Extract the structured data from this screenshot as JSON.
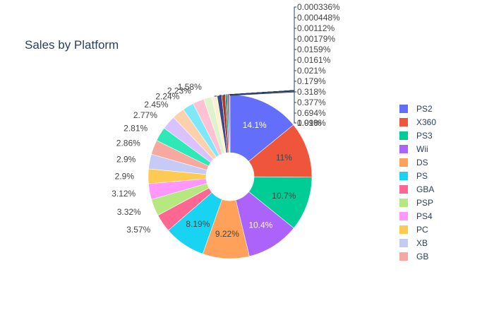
{
  "chart_data": {
    "type": "pie",
    "title": "Sales by Platform",
    "hole": true,
    "legend_position": "right",
    "slices": [
      {
        "label": "PS2",
        "value": 14.1,
        "text": "14.1%",
        "color": "#636efa"
      },
      {
        "label": "X360",
        "value": 11.0,
        "text": "11%",
        "color": "#EF553B"
      },
      {
        "label": "PS3",
        "value": 10.7,
        "text": "10.7%",
        "color": "#00cc96"
      },
      {
        "label": "Wii",
        "value": 10.4,
        "text": "10.4%",
        "color": "#ab63fa"
      },
      {
        "label": "DS",
        "value": 9.22,
        "text": "9.22%",
        "color": "#FFA15A"
      },
      {
        "label": "PS",
        "value": 8.19,
        "text": "8.19%",
        "color": "#19d3f3"
      },
      {
        "label": "GBA",
        "value": 3.57,
        "text": "3.57%",
        "color": "#FF6692"
      },
      {
        "label": "PSP",
        "value": 3.32,
        "text": "3.32%",
        "color": "#B6E880"
      },
      {
        "label": "PS4",
        "value": 3.12,
        "text": "3.12%",
        "color": "#FF97FF"
      },
      {
        "label": "PC",
        "value": 2.9,
        "text": "2.9%",
        "color": "#FECB52"
      },
      {
        "label": "XB",
        "value": 2.9,
        "text": "2.9%",
        "color": "#c6cbf5"
      },
      {
        "label": "GB",
        "value": 2.86,
        "text": "2.86%",
        "color": "#f7a9a0"
      },
      {
        "label": "",
        "value": 2.81,
        "text": "2.81%",
        "color": "#2ee8b8"
      },
      {
        "label": "",
        "value": 2.77,
        "text": "2.77%",
        "color": "#dbc1fd"
      },
      {
        "label": "",
        "value": 2.45,
        "text": "2.45%",
        "color": "#ffd0ac"
      },
      {
        "label": "",
        "value": 2.24,
        "text": "2.24%",
        "color": "#7ee8f9"
      },
      {
        "label": "",
        "value": 2.23,
        "text": "2.23%",
        "color": "#ffc2d4"
      },
      {
        "label": "",
        "value": 1.58,
        "text": "1.58%",
        "color": "#def3cb"
      },
      {
        "label": "",
        "value": 1.09,
        "text": "1.09%",
        "color": "#fff0cf"
      },
      {
        "label": "",
        "value": 0.918,
        "text": "0.918%",
        "color": "#3b4687"
      },
      {
        "label": "",
        "value": 0.694,
        "text": "0.694%",
        "color": "#b0342a"
      },
      {
        "label": "",
        "value": 0.377,
        "text": "0.377%",
        "color": "#009e75"
      },
      {
        "label": "",
        "value": 0.318,
        "text": "0.318%",
        "color": "#6f3fb0"
      },
      {
        "label": "",
        "value": 0.179,
        "text": "0.179%",
        "color": "#c87a3f"
      },
      {
        "label": "",
        "value": 0.021,
        "text": "0.021%",
        "color": "#1297b0"
      },
      {
        "label": "",
        "value": 0.0161,
        "text": "0.0161%",
        "color": "#b84a68"
      },
      {
        "label": "",
        "value": 0.0159,
        "text": "0.0159%",
        "color": "#7aa853"
      },
      {
        "label": "",
        "value": 0.00179,
        "text": "0.00179%",
        "color": "#b868b8"
      },
      {
        "label": "",
        "value": 0.00112,
        "text": "0.00112%",
        "color": "#b8913a"
      },
      {
        "label": "",
        "value": 0.000448,
        "text": "0.000448%",
        "color": "#7d82a8"
      },
      {
        "label": "",
        "value": 0.000336,
        "text": "0.000336%",
        "color": "#a8716a"
      }
    ]
  }
}
